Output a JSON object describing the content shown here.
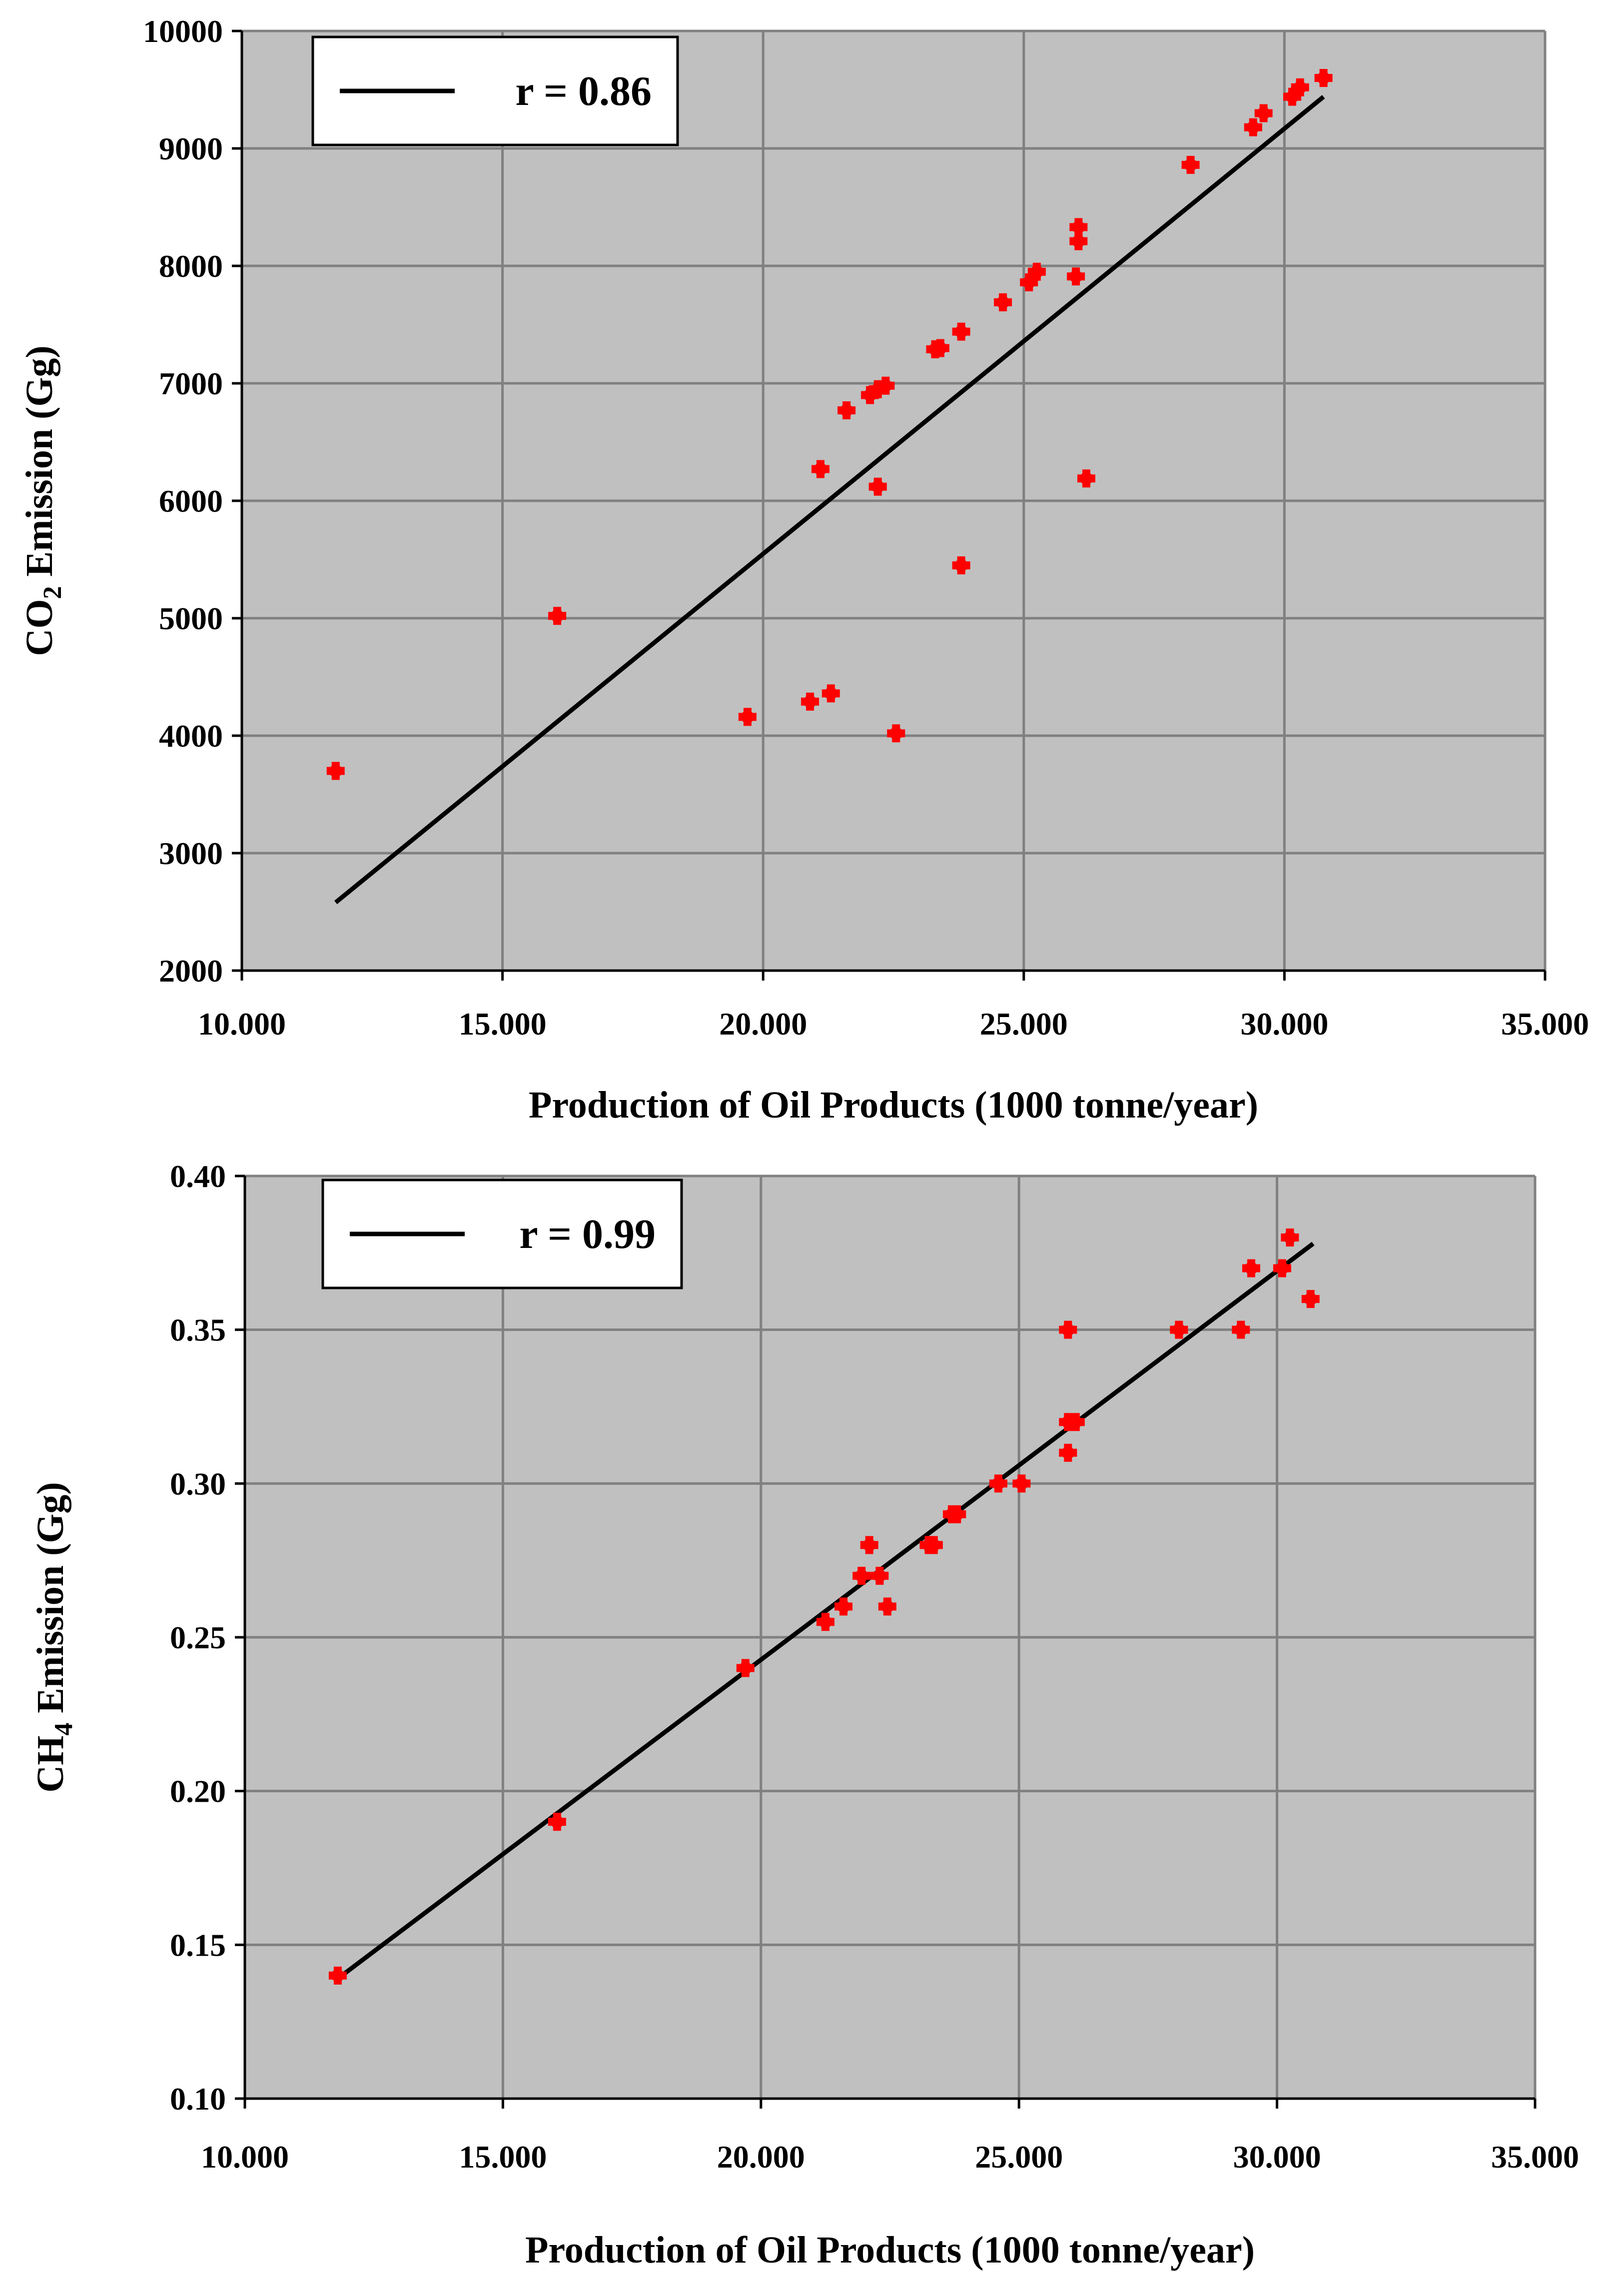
{
  "colors": {
    "plot_background": "#c0c0c0",
    "grid": "#808080",
    "point": "#ff0000",
    "fit_line": "#000000"
  },
  "chart_data": [
    {
      "type": "scatter",
      "xlabel": "Production of Oil Products (1000 tonne/year)",
      "ylabel_main": "CO",
      "ylabel_sub": "2",
      "ylabel_rest": " Emission (Gg)",
      "xlim": [
        10000,
        35000
      ],
      "ylim": [
        2000,
        10000
      ],
      "xticks": [
        10000,
        15000,
        20000,
        25000,
        30000,
        35000
      ],
      "xtick_labels": [
        "10.000",
        "15.000",
        "20.000",
        "25.000",
        "30.000",
        "35.000"
      ],
      "yticks": [
        2000,
        3000,
        4000,
        5000,
        6000,
        7000,
        8000,
        9000,
        10000
      ],
      "ytick_labels": [
        "2000",
        "3000",
        "4000",
        "5000",
        "6000",
        "7000",
        "8000",
        "9000",
        "10000"
      ],
      "grid": true,
      "legend": {
        "label": "r = 0.86",
        "position": "top-left"
      },
      "points": [
        [
          11800,
          3700
        ],
        [
          16050,
          5020
        ],
        [
          19700,
          4160
        ],
        [
          20900,
          4290
        ],
        [
          21300,
          4360
        ],
        [
          22550,
          4020
        ],
        [
          21100,
          6270
        ],
        [
          22200,
          6120
        ],
        [
          21600,
          6770
        ],
        [
          22050,
          6900
        ],
        [
          22200,
          6950
        ],
        [
          22350,
          6980
        ],
        [
          23300,
          7290
        ],
        [
          23400,
          7300
        ],
        [
          23800,
          7440
        ],
        [
          23800,
          5450
        ],
        [
          24600,
          7690
        ],
        [
          25100,
          7860
        ],
        [
          25250,
          7950
        ],
        [
          26000,
          7910
        ],
        [
          26050,
          8210
        ],
        [
          26050,
          8330
        ],
        [
          26200,
          6190
        ],
        [
          28200,
          8860
        ],
        [
          29400,
          9180
        ],
        [
          29600,
          9300
        ],
        [
          30150,
          9440
        ],
        [
          30300,
          9520
        ],
        [
          30750,
          9600
        ]
      ],
      "fit_line": [
        [
          11800,
          2580
        ],
        [
          30750,
          9440
        ]
      ]
    },
    {
      "type": "scatter",
      "xlabel": "Production of Oil Products (1000 tonne/year)",
      "ylabel_main": "CH",
      "ylabel_sub": "4",
      "ylabel_rest": " Emission (Gg)",
      "xlim": [
        10000,
        35000
      ],
      "ylim": [
        0.1,
        0.4
      ],
      "xticks": [
        10000,
        15000,
        20000,
        25000,
        30000,
        35000
      ],
      "xtick_labels": [
        "10.000",
        "15.000",
        "20.000",
        "25.000",
        "30.000",
        "35.000"
      ],
      "yticks": [
        0.1,
        0.15,
        0.2,
        0.25,
        0.3,
        0.35,
        0.4
      ],
      "ytick_labels": [
        "0.10",
        "0.15",
        "0.20",
        "0.25",
        "0.30",
        "0.35",
        "0.40"
      ],
      "grid": true,
      "legend": {
        "label": "r = 0.99",
        "position": "top-left"
      },
      "points": [
        [
          11800,
          0.14
        ],
        [
          16050,
          0.19
        ],
        [
          19700,
          0.24
        ],
        [
          21250,
          0.255
        ],
        [
          21600,
          0.26
        ],
        [
          21950,
          0.27
        ],
        [
          22100,
          0.28
        ],
        [
          22300,
          0.27
        ],
        [
          22450,
          0.26
        ],
        [
          23250,
          0.28
        ],
        [
          23350,
          0.28
        ],
        [
          23700,
          0.29
        ],
        [
          23800,
          0.29
        ],
        [
          24600,
          0.3
        ],
        [
          25050,
          0.3
        ],
        [
          25950,
          0.35
        ],
        [
          25950,
          0.32
        ],
        [
          25950,
          0.31
        ],
        [
          26100,
          0.32
        ],
        [
          28100,
          0.35
        ],
        [
          29300,
          0.35
        ],
        [
          29500,
          0.37
        ],
        [
          30100,
          0.37
        ],
        [
          30250,
          0.38
        ],
        [
          30650,
          0.36
        ]
      ],
      "fit_line": [
        [
          11800,
          0.139
        ],
        [
          30700,
          0.378
        ]
      ]
    }
  ]
}
